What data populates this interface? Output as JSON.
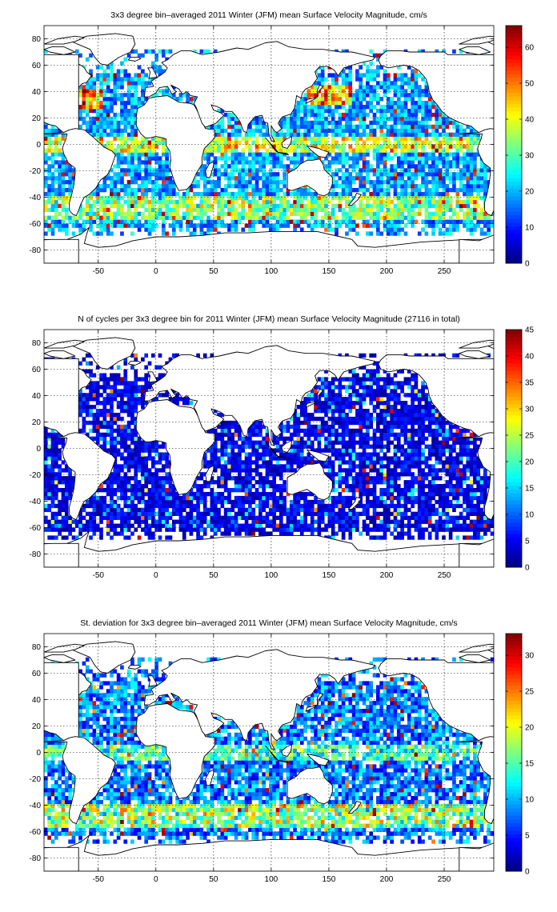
{
  "chart_data": [
    {
      "type": "heatmap",
      "title": "3x3 degree bin–averaged 2011 Winter (JFM) mean Surface Velocity Magnitude, cm/s",
      "xlabel": "",
      "ylabel": "",
      "xlim": [
        -97,
        293
      ],
      "ylim": [
        -90,
        90
      ],
      "xticks": [
        -50,
        0,
        50,
        100,
        150,
        200,
        250
      ],
      "yticks": [
        -80,
        -60,
        -40,
        -20,
        0,
        20,
        40,
        60,
        80
      ],
      "colorbar": {
        "min": 0,
        "max": 66,
        "ticks": [
          0,
          10,
          20,
          30,
          40,
          50,
          60
        ],
        "colormap": "jet"
      },
      "grid": true,
      "bin_size_deg": 3,
      "field": "mean_velocity"
    },
    {
      "type": "heatmap",
      "title": "N of cycles per 3x3 degree bin for 2011 Winter (JFM) mean Surface Velocity Magnitude (27116 in total)",
      "xlabel": "",
      "ylabel": "",
      "xlim": [
        -97,
        293
      ],
      "ylim": [
        -90,
        90
      ],
      "xticks": [
        -50,
        0,
        50,
        100,
        150,
        200,
        250
      ],
      "yticks": [
        -80,
        -60,
        -40,
        -20,
        0,
        20,
        40,
        60,
        80
      ],
      "colorbar": {
        "min": 0,
        "max": 45,
        "ticks": [
          0,
          5,
          10,
          15,
          20,
          25,
          30,
          35,
          40,
          45
        ],
        "colormap": "jet"
      },
      "grid": true,
      "bin_size_deg": 3,
      "total_cycles": 27116,
      "field": "cycle_count"
    },
    {
      "type": "heatmap",
      "title": "St. deviation for 3x3 degree bin–averaged 2011 Winter (JFM) mean Surface Velocity Magnitude, cm/s",
      "xlabel": "",
      "ylabel": "",
      "xlim": [
        -97,
        293
      ],
      "ylim": [
        -90,
        90
      ],
      "xticks": [
        -50,
        0,
        50,
        100,
        150,
        200,
        250
      ],
      "yticks": [
        -80,
        -60,
        -40,
        -20,
        0,
        20,
        40,
        60,
        80
      ],
      "colorbar": {
        "min": 0,
        "max": 33,
        "ticks": [
          0,
          5,
          10,
          15,
          20,
          25,
          30
        ],
        "colormap": "jet"
      },
      "grid": true,
      "bin_size_deg": 3,
      "field": "std_velocity"
    }
  ]
}
